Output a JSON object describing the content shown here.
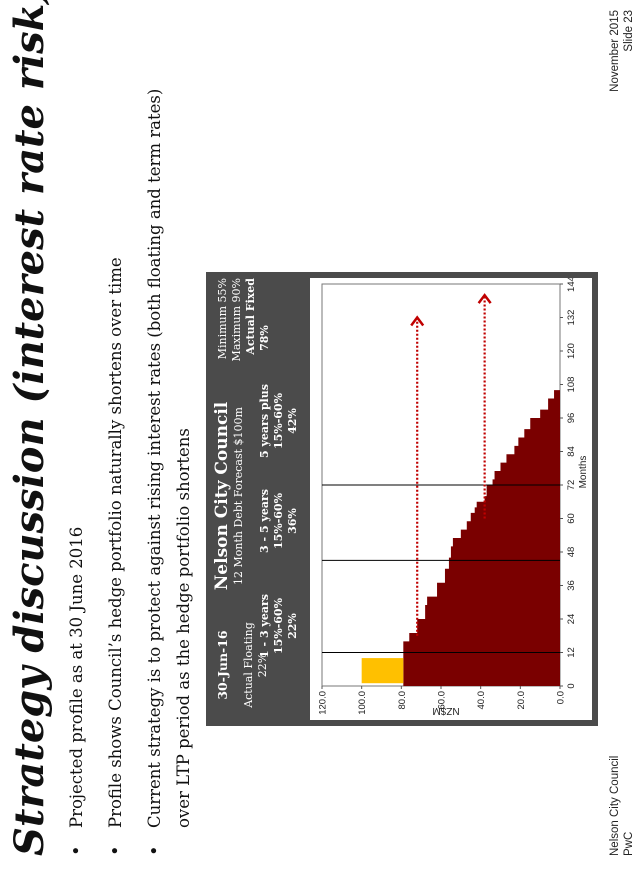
{
  "slide": {
    "title": "Strategy discussion (interest rate risk)",
    "bullets": [
      {
        "line1": "Projected profile as at 30 June 2016",
        "line2": ""
      },
      {
        "line1": "Profile shows Council’s hedge portfolio naturally shortens over time",
        "line2": ""
      },
      {
        "line1": "Current strategy is to protect against rising interest rates (both floating and term rates)",
        "line2": "over LTP period as the hedge portfolio shortens"
      }
    ],
    "bullet_glyph": "•"
  },
  "chart_header": {
    "date": "30-Jun-16",
    "floating_label": "Actual Floating",
    "floating_value": "22%",
    "council": "Nelson City Council",
    "forecast": "12 Month Debt Forecast $100m",
    "min": "Minimum 55%",
    "max": "Maximum 90%",
    "actual_fixed_label": "Actual Fixed",
    "actual_fixed_value": "78%",
    "bands": [
      {
        "label": "1 - 3 years",
        "range": "15%-60%",
        "actual": "22%"
      },
      {
        "label": "3 - 5 years",
        "range": "15%-60%",
        "actual": "36%"
      },
      {
        "label": "5 years plus",
        "range": "15%-60%",
        "actual": "42%"
      }
    ]
  },
  "chart_data": {
    "type": "area",
    "title": "",
    "xlabel": "Months",
    "ylabel": "NZ$M",
    "xlim": [
      0,
      144
    ],
    "ylim": [
      0,
      120
    ],
    "x_ticks": [
      0,
      12,
      24,
      36,
      48,
      60,
      72,
      84,
      96,
      108,
      120,
      132,
      144
    ],
    "y_ticks": [
      "0.0",
      "20.0",
      "40.0",
      "60.0",
      "80.0",
      "100.0",
      "120.0"
    ],
    "vertical_gridlines": [
      12,
      45,
      72
    ],
    "series": [
      {
        "color": "#7a0000",
        "step_points": [
          [
            0,
            79
          ],
          [
            16,
            76
          ],
          [
            19,
            72
          ],
          [
            24,
            68
          ],
          [
            29,
            67
          ],
          [
            32,
            62
          ],
          [
            37,
            58
          ],
          [
            42,
            56
          ],
          [
            46,
            55
          ],
          [
            50,
            54
          ],
          [
            53,
            50
          ],
          [
            56,
            47
          ],
          [
            59,
            45
          ],
          [
            62,
            43
          ],
          [
            64,
            42
          ],
          [
            66,
            38
          ],
          [
            68,
            37
          ],
          [
            72,
            34
          ],
          [
            74,
            33
          ],
          [
            77,
            30
          ],
          [
            80,
            27
          ],
          [
            83,
            23
          ],
          [
            86,
            21
          ],
          [
            89,
            18
          ],
          [
            92,
            15
          ],
          [
            96,
            10
          ],
          [
            99,
            6
          ],
          [
            103,
            3
          ],
          [
            106,
            0
          ]
        ]
      },
      {
        "color": "#ffc000",
        "bars": [
          {
            "x0": 1,
            "x1": 10,
            "y0": 79,
            "y1": 100
          }
        ]
      }
    ],
    "annotations": [
      {
        "kind": "dotted-arrow",
        "color": "#c00000",
        "x0": 18,
        "x1": 132,
        "y": 72
      },
      {
        "kind": "dotted-arrow",
        "color": "#c00000",
        "x0": 60,
        "x1": 140,
        "y": 38
      }
    ],
    "legend": "none"
  },
  "footer": {
    "org": "Nelson City Council",
    "sub": "PwC",
    "date": "November 2015",
    "slide_label": "Slide 23"
  }
}
